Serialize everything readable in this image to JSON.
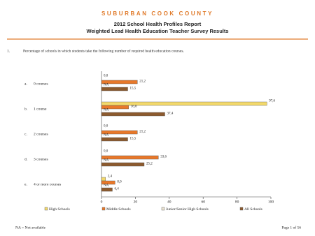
{
  "header": {
    "brand": "SUBURBAN COOK COUNTY",
    "title": "2012 School Health Profiles Report",
    "subtitle": "Weighted Lead Health Education Teacher Survey Results"
  },
  "question": {
    "number": "1.",
    "text": "Percentage of schools in which students take the following number of required health education courses."
  },
  "chart_data": {
    "type": "bar",
    "orientation": "horizontal",
    "category_markers": [
      "a.",
      "b.",
      "c.",
      "d.",
      "e."
    ],
    "categories": [
      "0 courses",
      "1 course",
      "2 courses",
      "3 courses",
      "4 or more courses"
    ],
    "series": [
      {
        "name": "High Schools",
        "color": "#f3d96b",
        "values": [
          0.0,
          97.6,
          0.0,
          0.0,
          2.4
        ],
        "value_labels": [
          "0,0",
          "97,6",
          "0,0",
          "0,0",
          "2,4"
        ]
      },
      {
        "name": "Middle Schools",
        "color": "#e8782a",
        "values": [
          21.2,
          16.0,
          21.2,
          33.6,
          8.0
        ],
        "value_labels": [
          "21,2",
          "16,0",
          "21,2",
          "33,6",
          "8,0"
        ]
      },
      {
        "name": "Junior/Senior High Schools",
        "color": "#ece4d2",
        "values": [
          null,
          null,
          null,
          null,
          null
        ],
        "value_labels": [
          "NA",
          "NA",
          "NA",
          "NA",
          "NA"
        ]
      },
      {
        "name": "All Schools",
        "color": "#8c5a2e",
        "values": [
          15.5,
          37.4,
          15.5,
          25.2,
          6.4
        ],
        "value_labels": [
          "15,5",
          "37,4",
          "15,5",
          "25,2",
          "6,4"
        ]
      }
    ],
    "xlim": [
      0,
      100
    ],
    "xticks": [
      0,
      20,
      40,
      60,
      80,
      100
    ]
  },
  "footer": {
    "note": "NA = Not available",
    "page": "Page 1 of 56"
  }
}
